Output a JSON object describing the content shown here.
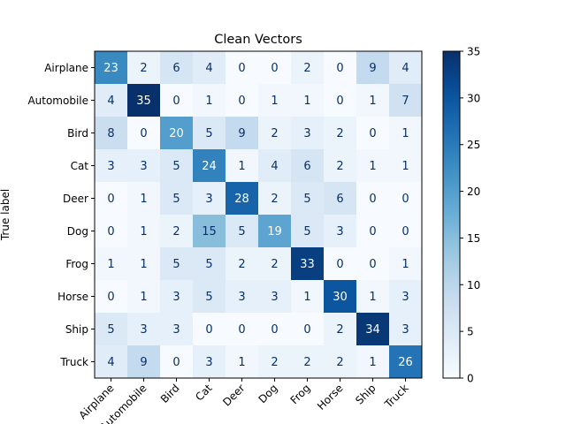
{
  "chart_data": {
    "type": "heatmap",
    "title": "Clean Vectors",
    "ylabel": "True label",
    "xlabel": "",
    "classes": [
      "Airplane",
      "Automobile",
      "Bird",
      "Cat",
      "Deer",
      "Dog",
      "Frog",
      "Horse",
      "Ship",
      "Truck"
    ],
    "matrix": [
      [
        23,
        2,
        6,
        4,
        0,
        0,
        2,
        0,
        9,
        4
      ],
      [
        4,
        35,
        0,
        1,
        0,
        1,
        1,
        0,
        1,
        7
      ],
      [
        8,
        0,
        20,
        5,
        9,
        2,
        3,
        2,
        0,
        1
      ],
      [
        3,
        3,
        5,
        24,
        1,
        4,
        6,
        2,
        1,
        1
      ],
      [
        0,
        1,
        5,
        3,
        28,
        2,
        5,
        6,
        0,
        0
      ],
      [
        0,
        1,
        2,
        15,
        5,
        19,
        5,
        3,
        0,
        0
      ],
      [
        1,
        1,
        5,
        5,
        2,
        2,
        33,
        0,
        0,
        1
      ],
      [
        0,
        1,
        3,
        5,
        3,
        3,
        1,
        30,
        1,
        3
      ],
      [
        5,
        3,
        3,
        0,
        0,
        0,
        0,
        2,
        34,
        3
      ],
      [
        4,
        9,
        0,
        3,
        1,
        2,
        2,
        2,
        1,
        26
      ]
    ],
    "colormap": "Blues",
    "color_range": [
      0,
      35
    ],
    "colorbar_ticks": [
      0,
      5,
      10,
      15,
      20,
      25,
      30,
      35
    ],
    "grid": false,
    "legend": "colorbar-right"
  }
}
